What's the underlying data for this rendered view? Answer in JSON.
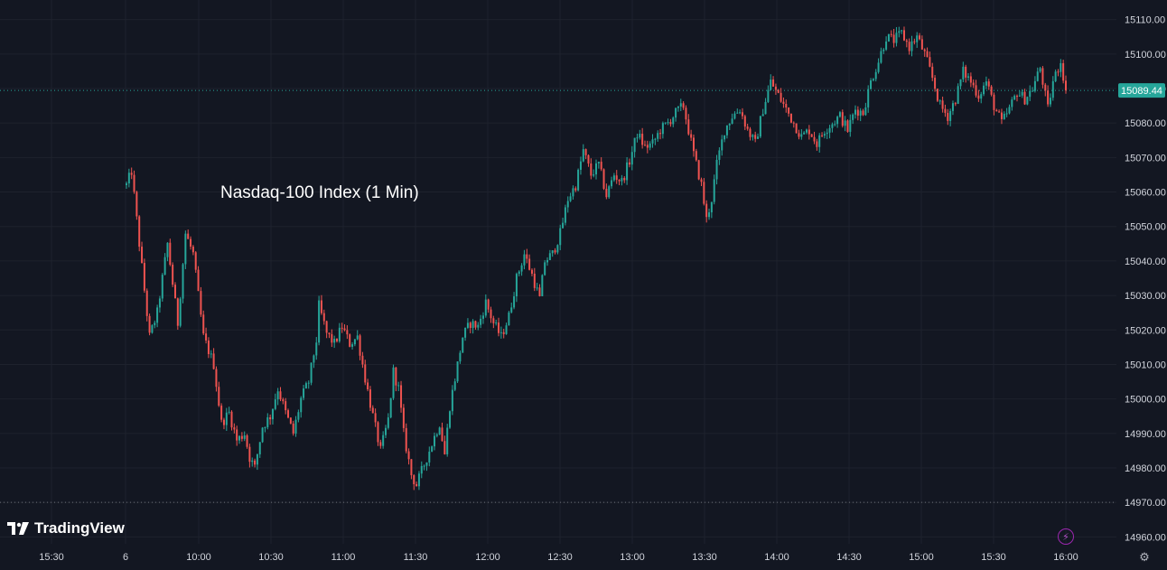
{
  "chart_data": {
    "type": "candlestick",
    "title": "Nasdaq-100 Index (1 Min)",
    "current_price": 15089.44,
    "current_price_label": "15089.44",
    "session_low": 14970,
    "ylim": [
      14958,
      15112
    ],
    "y_ticks": [
      "15110.00",
      "15100.00",
      "15090.00",
      "15080.00",
      "15070.00",
      "15060.00",
      "15050.00",
      "15040.00",
      "15030.00",
      "15020.00",
      "15010.00",
      "15000.00",
      "14990.00",
      "14980.00",
      "14970.00",
      "14960.00"
    ],
    "x_ticks": [
      "15:30",
      "6",
      "10:00",
      "10:30",
      "11:00",
      "11:30",
      "12:00",
      "12:30",
      "13:00",
      "13:30",
      "14:00",
      "14:30",
      "15:00",
      "15:30",
      "16:00"
    ],
    "grid": true,
    "up_color": "#26a69a",
    "down_color": "#ef5350",
    "path": [
      [
        0,
        15062
      ],
      [
        2,
        15066
      ],
      [
        5,
        15045
      ],
      [
        9,
        15018
      ],
      [
        12,
        15025
      ],
      [
        16,
        15045
      ],
      [
        20,
        15022
      ],
      [
        23,
        15048
      ],
      [
        26,
        15042
      ],
      [
        30,
        15018
      ],
      [
        34,
        15010
      ],
      [
        37,
        14993
      ],
      [
        40,
        14996
      ],
      [
        43,
        14988
      ],
      [
        46,
        14990
      ],
      [
        48,
        14983
      ],
      [
        50,
        14980
      ],
      [
        53,
        14992
      ],
      [
        56,
        14995
      ],
      [
        59,
        15003
      ],
      [
        62,
        14996
      ],
      [
        65,
        14990
      ],
      [
        68,
        15000
      ],
      [
        71,
        15005
      ],
      [
        74,
        15017
      ],
      [
        75,
        15027
      ],
      [
        78,
        15019
      ],
      [
        81,
        15016
      ],
      [
        84,
        15021
      ],
      [
        87,
        15016
      ],
      [
        90,
        15018
      ],
      [
        93,
        15006
      ],
      [
        96,
        14995
      ],
      [
        99,
        14985
      ],
      [
        102,
        14994
      ],
      [
        104,
        15008
      ],
      [
        106,
        15003
      ],
      [
        108,
        14990
      ],
      [
        111,
        14978
      ],
      [
        113,
        14975
      ],
      [
        116,
        14981
      ],
      [
        119,
        14987
      ],
      [
        122,
        14993
      ],
      [
        124,
        14984
      ],
      [
        126,
        14998
      ],
      [
        128,
        15006
      ],
      [
        131,
        15018
      ],
      [
        134,
        15022
      ],
      [
        137,
        15021
      ],
      [
        140,
        15028
      ],
      [
        143,
        15022
      ],
      [
        146,
        15018
      ],
      [
        149,
        15024
      ],
      [
        152,
        15035
      ],
      [
        155,
        15042
      ],
      [
        158,
        15036
      ],
      [
        161,
        15029
      ],
      [
        163,
        15040
      ],
      [
        166,
        15042
      ],
      [
        169,
        15048
      ],
      [
        172,
        15058
      ],
      [
        175,
        15062
      ],
      [
        178,
        15072
      ],
      [
        181,
        15065
      ],
      [
        184,
        15068
      ],
      [
        187,
        15059
      ],
      [
        190,
        15065
      ],
      [
        193,
        15063
      ],
      [
        196,
        15069
      ],
      [
        199,
        15077
      ],
      [
        202,
        15073
      ],
      [
        205,
        15074
      ],
      [
        208,
        15078
      ],
      [
        211,
        15080
      ],
      [
        214,
        15083
      ],
      [
        217,
        15085
      ],
      [
        219,
        15078
      ],
      [
        221,
        15071
      ],
      [
        224,
        15062
      ],
      [
        226,
        15052
      ],
      [
        228,
        15058
      ],
      [
        230,
        15068
      ],
      [
        233,
        15078
      ],
      [
        236,
        15082
      ],
      [
        239,
        15084
      ],
      [
        242,
        15078
      ],
      [
        245,
        15074
      ],
      [
        248,
        15084
      ],
      [
        251,
        15092
      ],
      [
        254,
        15088
      ],
      [
        257,
        15084
      ],
      [
        260,
        15080
      ],
      [
        263,
        15076
      ],
      [
        266,
        15078
      ],
      [
        269,
        15074
      ],
      [
        272,
        15078
      ],
      [
        275,
        15080
      ],
      [
        278,
        15082
      ],
      [
        281,
        15078
      ],
      [
        284,
        15084
      ],
      [
        287,
        15083
      ],
      [
        290,
        15092
      ],
      [
        293,
        15098
      ],
      [
        296,
        15105
      ],
      [
        299,
        15104
      ],
      [
        302,
        15106
      ],
      [
        305,
        15102
      ],
      [
        308,
        15105
      ],
      [
        311,
        15100
      ],
      [
        314,
        15093
      ],
      [
        317,
        15085
      ],
      [
        320,
        15082
      ],
      [
        323,
        15087
      ],
      [
        326,
        15095
      ],
      [
        329,
        15092
      ],
      [
        332,
        15088
      ],
      [
        335,
        15092
      ],
      [
        338,
        15085
      ],
      [
        341,
        15080
      ],
      [
        344,
        15084
      ],
      [
        347,
        15089
      ],
      [
        350,
        15087
      ],
      [
        353,
        15090
      ],
      [
        356,
        15096
      ],
      [
        359,
        15084
      ],
      [
        361,
        15092
      ],
      [
        364,
        15098
      ],
      [
        366,
        15089.44
      ]
    ]
  }
}
